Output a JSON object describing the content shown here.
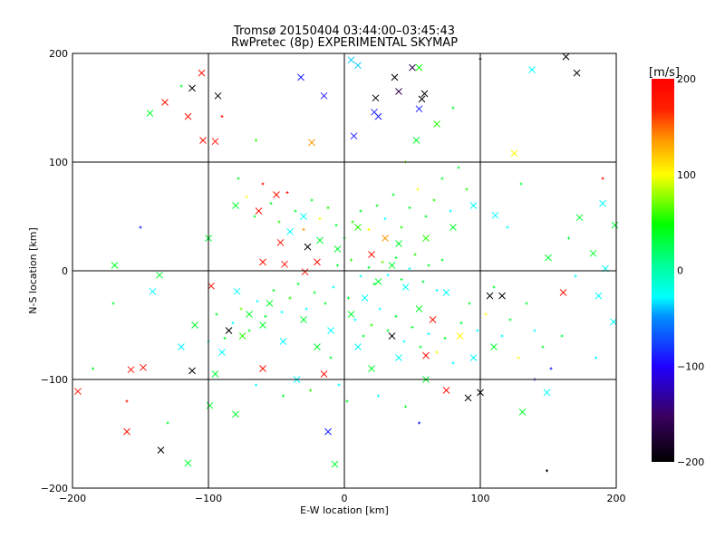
{
  "chart_data": {
    "type": "scatter",
    "title": "Tromsø 20150404 03:44:00–03:45:43",
    "subtitle": "RwPretec (8p) EXPERIMENTAL SKYMAP",
    "xlabel": "E-W location [km]",
    "ylabel": "N-S location [km]",
    "xlim": [
      -200,
      200
    ],
    "ylim": [
      -200,
      200
    ],
    "xticks": [
      "−200",
      "−100",
      "0",
      "100",
      "200"
    ],
    "yticks": [
      "−200",
      "−100",
      "0",
      "100",
      "200"
    ],
    "grid": true,
    "colorbar": {
      "label": "[m/s]",
      "range": [
        -200,
        200
      ],
      "ticks": [
        "200",
        "100",
        "0",
        "−100",
        "−200"
      ],
      "placement": "right"
    },
    "point_format": "[x_km, y_km, velocity_m_s, marker (1=x cross, 0=dot)]",
    "points": [
      [
        -105,
        182,
        190,
        1
      ],
      [
        -132,
        155,
        190,
        1
      ],
      [
        -143,
        145,
        20,
        1
      ],
      [
        -115,
        142,
        190,
        1
      ],
      [
        -112,
        168,
        -200,
        1
      ],
      [
        -93,
        161,
        -200,
        1
      ],
      [
        -95,
        119,
        190,
        1
      ],
      [
        -104,
        120,
        190,
        1
      ],
      [
        -32,
        178,
        -90,
        1
      ],
      [
        -15,
        161,
        -90,
        1
      ],
      [
        5,
        194,
        -40,
        1
      ],
      [
        10,
        189,
        -40,
        1
      ],
      [
        23,
        159,
        -200,
        1
      ],
      [
        37,
        178,
        -200,
        1
      ],
      [
        40,
        165,
        -160,
        1
      ],
      [
        50,
        187,
        -160,
        1
      ],
      [
        55,
        187,
        30,
        1
      ],
      [
        59,
        163,
        -200,
        1
      ],
      [
        57,
        158,
        -200,
        1
      ],
      [
        22,
        146,
        -90,
        1
      ],
      [
        25,
        142,
        -90,
        1
      ],
      [
        7,
        124,
        -90,
        1
      ],
      [
        55,
        149,
        -90,
        1
      ],
      [
        138,
        185,
        -30,
        1
      ],
      [
        171,
        182,
        -200,
        1
      ],
      [
        163,
        197,
        -200,
        1
      ],
      [
        125,
        108,
        100,
        1
      ],
      [
        -24,
        118,
        150,
        1
      ],
      [
        53,
        120,
        20,
        1
      ],
      [
        68,
        135,
        40,
        1
      ],
      [
        -90,
        142,
        190,
        0
      ],
      [
        -65,
        120,
        40,
        0
      ],
      [
        45,
        100,
        60,
        0
      ],
      [
        80,
        150,
        20,
        0
      ],
      [
        100,
        195,
        -200,
        0
      ],
      [
        -120,
        170,
        20,
        0
      ],
      [
        -157,
        -91,
        190,
        1
      ],
      [
        -148,
        -89,
        190,
        1
      ],
      [
        -160,
        -148,
        190,
        1
      ],
      [
        -135,
        -165,
        -200,
        1
      ],
      [
        -115,
        -177,
        20,
        1
      ],
      [
        -112,
        -92,
        -200,
        1
      ],
      [
        -196,
        -111,
        190,
        1
      ],
      [
        -99,
        -124,
        20,
        1
      ],
      [
        -80,
        -132,
        20,
        1
      ],
      [
        -7,
        -178,
        20,
        1
      ],
      [
        -12,
        -148,
        -90,
        1
      ],
      [
        91,
        -117,
        -200,
        1
      ],
      [
        149,
        -184,
        -200,
        0
      ],
      [
        60,
        -78,
        190,
        1
      ],
      [
        161,
        -20,
        190,
        1
      ],
      [
        187,
        -23,
        -30,
        1
      ],
      [
        192,
        2,
        -30,
        1
      ],
      [
        198,
        -47,
        -30,
        1
      ],
      [
        116,
        -23,
        -200,
        1
      ],
      [
        107,
        -23,
        -200,
        1
      ],
      [
        111,
        51,
        -30,
        1
      ],
      [
        173,
        49,
        20,
        1
      ],
      [
        183,
        16,
        20,
        1
      ],
      [
        190,
        62,
        -30,
        1
      ],
      [
        199,
        42,
        20,
        1
      ],
      [
        150,
        12,
        20,
        1
      ],
      [
        131,
        -130,
        20,
        1
      ],
      [
        149,
        -112,
        -30,
        1
      ],
      [
        100,
        -112,
        -200,
        1
      ],
      [
        -169,
        5,
        20,
        1
      ],
      [
        -141,
        -19,
        -30,
        1
      ],
      [
        -136,
        -4,
        20,
        1
      ],
      [
        -98,
        -14,
        190,
        1
      ],
      [
        -79,
        -19,
        -30,
        1
      ],
      [
        -63,
        55,
        190,
        1
      ],
      [
        -40,
        36,
        -30,
        1
      ],
      [
        -47,
        26,
        190,
        1
      ],
      [
        -44,
        6,
        190,
        1
      ],
      [
        -60,
        8,
        190,
        1
      ],
      [
        -20,
        8,
        190,
        1
      ],
      [
        -29,
        -1,
        190,
        1
      ],
      [
        -27,
        22,
        -200,
        1
      ],
      [
        -18,
        28,
        20,
        1
      ],
      [
        -55,
        -30,
        20,
        1
      ],
      [
        -70,
        -40,
        20,
        1
      ],
      [
        -85,
        -55,
        -200,
        1
      ],
      [
        -90,
        -75,
        -30,
        1
      ],
      [
        -75,
        -60,
        40,
        1
      ],
      [
        -60,
        -50,
        20,
        1
      ],
      [
        -45,
        -65,
        -30,
        1
      ],
      [
        -30,
        -45,
        20,
        1
      ],
      [
        -20,
        -70,
        20,
        1
      ],
      [
        -10,
        -55,
        -30,
        1
      ],
      [
        5,
        -40,
        20,
        1
      ],
      [
        15,
        -25,
        -30,
        1
      ],
      [
        25,
        -10,
        20,
        1
      ],
      [
        35,
        5,
        20,
        1
      ],
      [
        45,
        -15,
        -30,
        1
      ],
      [
        55,
        -35,
        20,
        1
      ],
      [
        65,
        -45,
        190,
        1
      ],
      [
        75,
        -20,
        -30,
        1
      ],
      [
        85,
        -60,
        100,
        1
      ],
      [
        95,
        -80,
        -30,
        1
      ],
      [
        110,
        -70,
        20,
        1
      ],
      [
        30,
        30,
        150,
        1
      ],
      [
        10,
        40,
        40,
        1
      ],
      [
        -5,
        20,
        20,
        1
      ],
      [
        20,
        15,
        190,
        1
      ],
      [
        40,
        25,
        20,
        1
      ],
      [
        60,
        30,
        40,
        1
      ],
      [
        80,
        40,
        20,
        1
      ],
      [
        95,
        60,
        -30,
        1
      ],
      [
        -30,
        50,
        -30,
        1
      ],
      [
        -50,
        70,
        190,
        1
      ],
      [
        -80,
        60,
        20,
        1
      ],
      [
        -100,
        30,
        20,
        1
      ],
      [
        -110,
        -50,
        20,
        1
      ],
      [
        -120,
        -70,
        -30,
        1
      ],
      [
        -95,
        -95,
        20,
        1
      ],
      [
        -60,
        -90,
        190,
        1
      ],
      [
        -35,
        -100,
        -30,
        1
      ],
      [
        -15,
        -95,
        190,
        1
      ],
      [
        20,
        -90,
        20,
        1
      ],
      [
        40,
        -80,
        -30,
        1
      ],
      [
        60,
        -100,
        20,
        1
      ],
      [
        75,
        -110,
        190,
        1
      ],
      [
        35,
        -60,
        -200,
        1
      ],
      [
        10,
        -70,
        -30,
        1
      ],
      [
        -5,
        5,
        20,
        0
      ],
      [
        0,
        0,
        20,
        0
      ],
      [
        5,
        10,
        40,
        0
      ],
      [
        12,
        -5,
        -30,
        0
      ],
      [
        18,
        3,
        20,
        0
      ],
      [
        22,
        -12,
        20,
        0
      ],
      [
        28,
        8,
        60,
        0
      ],
      [
        32,
        -4,
        -30,
        0
      ],
      [
        38,
        12,
        20,
        0
      ],
      [
        42,
        -8,
        20,
        0
      ],
      [
        48,
        2,
        -30,
        0
      ],
      [
        52,
        15,
        40,
        0
      ],
      [
        58,
        -10,
        20,
        0
      ],
      [
        62,
        5,
        20,
        0
      ],
      [
        68,
        -18,
        -30,
        0
      ],
      [
        72,
        10,
        20,
        0
      ],
      [
        -8,
        -15,
        -30,
        0
      ],
      [
        -14,
        -30,
        20,
        0
      ],
      [
        -22,
        -20,
        20,
        0
      ],
      [
        -28,
        -35,
        -30,
        0
      ],
      [
        -34,
        -12,
        20,
        0
      ],
      [
        -40,
        -25,
        40,
        0
      ],
      [
        -46,
        -38,
        -30,
        0
      ],
      [
        -52,
        -18,
        20,
        0
      ],
      [
        -58,
        -42,
        20,
        0
      ],
      [
        -64,
        -28,
        -30,
        0
      ],
      [
        -70,
        -55,
        20,
        0
      ],
      [
        -76,
        -35,
        60,
        0
      ],
      [
        -82,
        -48,
        -30,
        0
      ],
      [
        -88,
        -62,
        20,
        0
      ],
      [
        -94,
        -40,
        20,
        0
      ],
      [
        -100,
        -65,
        -30,
        0
      ],
      [
        3,
        -25,
        20,
        0
      ],
      [
        8,
        -45,
        -30,
        0
      ],
      [
        14,
        -60,
        20,
        0
      ],
      [
        20,
        -50,
        40,
        0
      ],
      [
        26,
        -35,
        -30,
        0
      ],
      [
        32,
        -55,
        20,
        0
      ],
      [
        38,
        -42,
        20,
        0
      ],
      [
        44,
        -65,
        -30,
        0
      ],
      [
        50,
        -52,
        20,
        0
      ],
      [
        56,
        -70,
        20,
        0
      ],
      [
        62,
        -58,
        -30,
        0
      ],
      [
        68,
        -75,
        100,
        0
      ],
      [
        74,
        -62,
        20,
        0
      ],
      [
        80,
        -85,
        -30,
        0
      ],
      [
        86,
        -48,
        20,
        0
      ],
      [
        92,
        -30,
        20,
        0
      ],
      [
        98,
        -55,
        -30,
        0
      ],
      [
        104,
        -40,
        100,
        0
      ],
      [
        110,
        -15,
        20,
        0
      ],
      [
        116,
        -60,
        -30,
        0
      ],
      [
        122,
        -45,
        20,
        0
      ],
      [
        128,
        -80,
        100,
        0
      ],
      [
        134,
        -30,
        20,
        0
      ],
      [
        140,
        -55,
        -30,
        0
      ],
      [
        146,
        -70,
        20,
        0
      ],
      [
        152,
        -90,
        -90,
        0
      ],
      [
        0,
        30,
        20,
        0
      ],
      [
        6,
        45,
        40,
        0
      ],
      [
        12,
        55,
        20,
        0
      ],
      [
        18,
        38,
        100,
        0
      ],
      [
        24,
        60,
        20,
        0
      ],
      [
        30,
        48,
        -30,
        0
      ],
      [
        36,
        70,
        20,
        0
      ],
      [
        42,
        40,
        40,
        0
      ],
      [
        48,
        58,
        20,
        0
      ],
      [
        54,
        75,
        100,
        0
      ],
      [
        60,
        50,
        20,
        0
      ],
      [
        66,
        65,
        40,
        0
      ],
      [
        72,
        85,
        20,
        0
      ],
      [
        78,
        55,
        -30,
        0
      ],
      [
        84,
        95,
        20,
        0
      ],
      [
        90,
        75,
        40,
        0
      ],
      [
        -6,
        42,
        20,
        0
      ],
      [
        -12,
        58,
        40,
        0
      ],
      [
        -18,
        48,
        100,
        0
      ],
      [
        -24,
        65,
        20,
        0
      ],
      [
        -30,
        38,
        150,
        0
      ],
      [
        -36,
        55,
        20,
        0
      ],
      [
        -42,
        72,
        190,
        0
      ],
      [
        -48,
        45,
        40,
        0
      ],
      [
        -54,
        62,
        20,
        0
      ],
      [
        -60,
        80,
        190,
        0
      ],
      [
        -66,
        50,
        20,
        0
      ],
      [
        -72,
        68,
        100,
        0
      ],
      [
        -78,
        85,
        20,
        0
      ],
      [
        -10,
        -80,
        20,
        0
      ],
      [
        -4,
        -105,
        -30,
        0
      ],
      [
        2,
        -120,
        20,
        0
      ],
      [
        -25,
        -110,
        40,
        0
      ],
      [
        25,
        -115,
        -30,
        0
      ],
      [
        45,
        -125,
        20,
        0
      ],
      [
        -45,
        -115,
        20,
        0
      ],
      [
        -65,
        -105,
        -30,
        0
      ],
      [
        55,
        -140,
        -90,
        0
      ],
      [
        -130,
        -140,
        20,
        0
      ],
      [
        -160,
        -120,
        190,
        0
      ],
      [
        -185,
        -90,
        20,
        0
      ],
      [
        -150,
        40,
        -90,
        0
      ],
      [
        -170,
        -30,
        20,
        0
      ],
      [
        170,
        -5,
        -30,
        0
      ],
      [
        160,
        -60,
        20,
        0
      ],
      [
        185,
        -80,
        -30,
        0
      ],
      [
        165,
        30,
        20,
        0
      ],
      [
        190,
        85,
        190,
        0
      ],
      [
        130,
        80,
        20,
        0
      ],
      [
        120,
        40,
        -30,
        0
      ],
      [
        140,
        -100,
        -90,
        0
      ]
    ]
  }
}
